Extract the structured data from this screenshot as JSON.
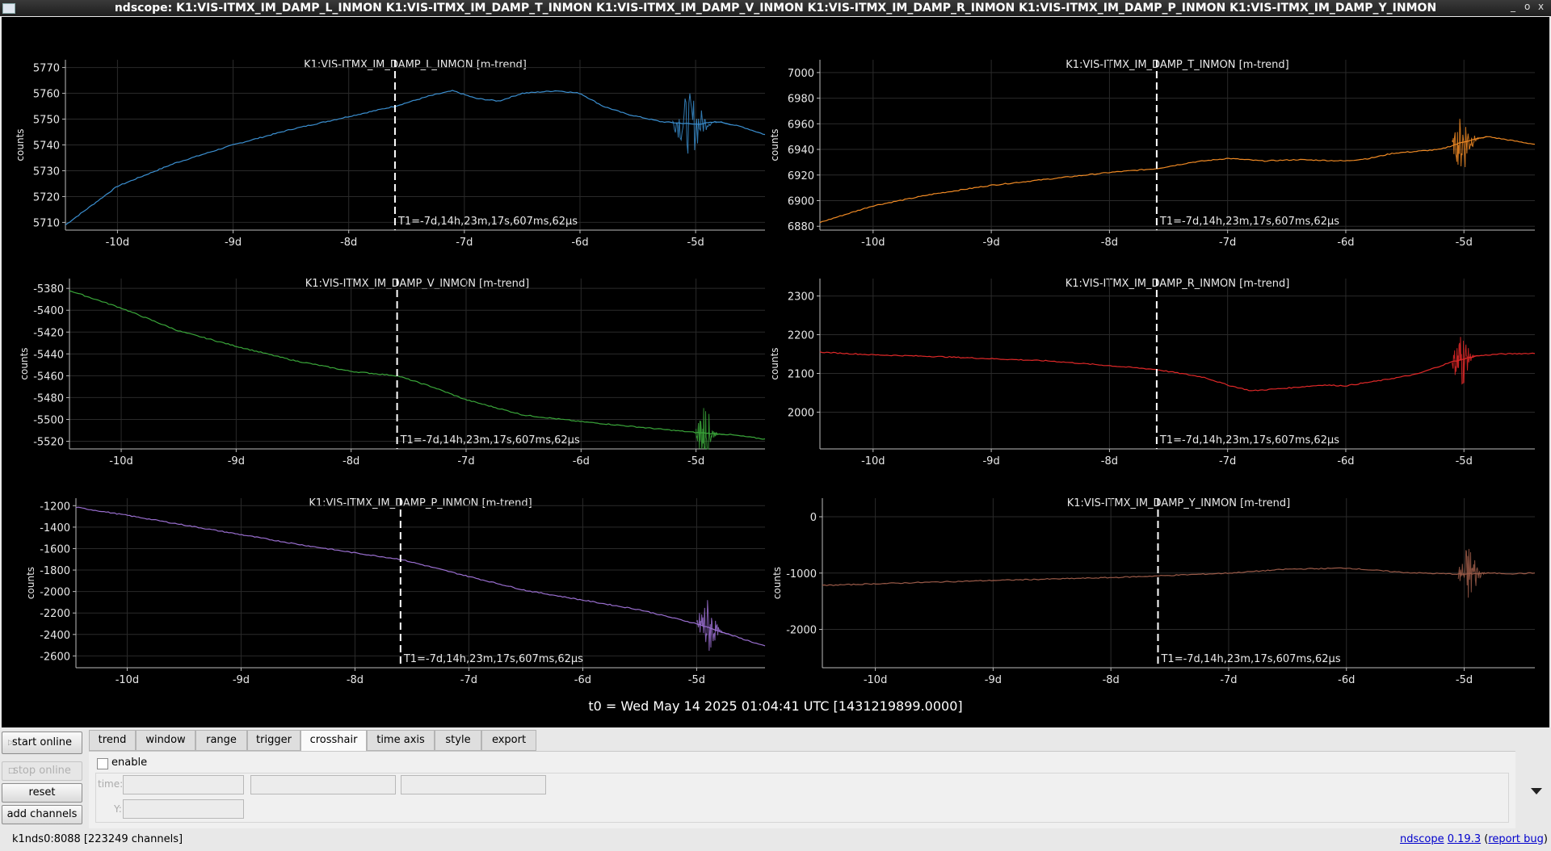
{
  "window": {
    "title": "ndscope: K1:VIS-ITMX_IM_DAMP_L_INMON K1:VIS-ITMX_IM_DAMP_T_INMON K1:VIS-ITMX_IM_DAMP_V_INMON K1:VIS-ITMX_IM_DAMP_R_INMON K1:VIS-ITMX_IM_DAMP_P_INMON K1:VIS-ITMX_IM_DAMP_Y_INMON",
    "controls": [
      "_",
      "o",
      "x"
    ]
  },
  "plots": [
    {
      "title": "K1:VIS-ITMX_IM_DAMP_L_INMON [m-trend]",
      "ylabel": "counts",
      "color": "#3b8fd0",
      "yticks": [
        "5770",
        "5760",
        "5750",
        "5740",
        "5730",
        "5720",
        "5710"
      ],
      "xticks": [
        "-10d",
        "-9d",
        "-8d",
        "-7d",
        "-6d",
        "-5d"
      ],
      "cursor_label": "T1=-7d,14h,23m,17s,607ms,62µs"
    },
    {
      "title": "K1:VIS-ITMX_IM_DAMP_T_INMON [m-trend]",
      "ylabel": "counts",
      "color": "#f08a24",
      "yticks": [
        "7000",
        "6980",
        "6960",
        "6940",
        "6920",
        "6900",
        "6880"
      ],
      "xticks": [
        "-10d",
        "-9d",
        "-8d",
        "-7d",
        "-6d",
        "-5d"
      ],
      "cursor_label": "T1=-7d,14h,23m,17s,607ms,62µs"
    },
    {
      "title": "K1:VIS-ITMX_IM_DAMP_V_INMON [m-trend]",
      "ylabel": "counts",
      "color": "#3aa63a",
      "yticks": [
        "-5380",
        "-5400",
        "-5420",
        "-5440",
        "-5460",
        "-5480",
        "-5500",
        "-5520"
      ],
      "xticks": [
        "-10d",
        "-9d",
        "-8d",
        "-7d",
        "-6d",
        "-5d"
      ],
      "cursor_label": "T1=-7d,14h,23m,17s,607ms,62µs"
    },
    {
      "title": "K1:VIS-ITMX_IM_DAMP_R_INMON [m-trend]",
      "ylabel": "counts",
      "color": "#e02828",
      "yticks": [
        "2300",
        "2200",
        "2100",
        "2000"
      ],
      "xticks": [
        "-10d",
        "-9d",
        "-8d",
        "-7d",
        "-6d",
        "-5d"
      ],
      "cursor_label": "T1=-7d,14h,23m,17s,607ms,62µs"
    },
    {
      "title": "K1:VIS-ITMX_IM_DAMP_P_INMON [m-trend]",
      "ylabel": "counts",
      "color": "#9a6fd0",
      "yticks": [
        "-1200",
        "-1400",
        "-1600",
        "-1800",
        "-2000",
        "-2200",
        "-2400",
        "-2600"
      ],
      "xticks": [
        "-10d",
        "-9d",
        "-8d",
        "-7d",
        "-6d",
        "-5d"
      ],
      "cursor_label": "T1=-7d,14h,23m,17s,607ms,62µs"
    },
    {
      "title": "K1:VIS-ITMX_IM_DAMP_Y_INMON [m-trend]",
      "ylabel": "counts",
      "color": "#9a5a48",
      "yticks": [
        "0",
        "-1000",
        "-2000"
      ],
      "xticks": [
        "-10d",
        "-9d",
        "-8d",
        "-7d",
        "-6d",
        "-5d"
      ],
      "cursor_label": "T1=-7d,14h,23m,17s,607ms,62µs"
    }
  ],
  "t0_label": "t0 = Wed May 14 2025 01:04:41 UTC [1431219899.0000]",
  "side_buttons": {
    "start_online": "start online",
    "stop_online": "stop online",
    "reset": "reset",
    "add_channels": "add channels"
  },
  "tabs": [
    "trend",
    "window",
    "range",
    "trigger",
    "crosshair",
    "time axis",
    "style",
    "export"
  ],
  "active_tab": "crosshair",
  "crosshair": {
    "enable_label": "enable",
    "enabled": false,
    "time_label": "time:",
    "y_label": "Y:",
    "time_value": "",
    "y_value": ""
  },
  "status": {
    "server": "k1nds0:8088  [223249 channels]",
    "app_link": "ndscope",
    "version_link": "0.19.3",
    "report_prefix": "(",
    "report_link": "report bug",
    "report_suffix": ")"
  },
  "chart_data": [
    {
      "type": "line",
      "title": "K1:VIS-ITMX_IM_DAMP_L_INMON [m-trend]",
      "ylabel": "counts",
      "xlim": [
        -10.45,
        -4.4
      ],
      "ylim": [
        5707,
        5773
      ],
      "cursor_x": -7.6,
      "x": [
        -10.45,
        -10.0,
        -9.5,
        -9.0,
        -8.5,
        -8.0,
        -7.6,
        -7.3,
        -7.1,
        -6.9,
        -6.7,
        -6.5,
        -6.2,
        -6.0,
        -5.8,
        -5.6,
        -5.3,
        -5.0,
        -4.8,
        -4.6,
        -4.4
      ],
      "y": [
        5709,
        5724,
        5733,
        5740,
        5746,
        5751,
        5755,
        5759,
        5761,
        5758,
        5757,
        5760,
        5761,
        5760,
        5755,
        5752,
        5749,
        5748,
        5749,
        5747,
        5744
      ],
      "noise_region": [
        -5.2,
        -4.7
      ]
    },
    {
      "type": "line",
      "title": "K1:VIS-ITMX_IM_DAMP_T_INMON [m-trend]",
      "ylabel": "counts",
      "xlim": [
        -10.45,
        -4.4
      ],
      "ylim": [
        6877,
        7010
      ],
      "cursor_x": -7.6,
      "x": [
        -10.45,
        -10.0,
        -9.5,
        -9.0,
        -8.5,
        -8.0,
        -7.6,
        -7.3,
        -7.0,
        -6.7,
        -6.4,
        -6.0,
        -5.8,
        -5.6,
        -5.2,
        -5.0,
        -4.8,
        -4.6,
        -4.4
      ],
      "y": [
        6883,
        6896,
        6905,
        6912,
        6917,
        6922,
        6925,
        6930,
        6933,
        6931,
        6932,
        6931,
        6933,
        6937,
        6940,
        6946,
        6950,
        6947,
        6944
      ],
      "noise_region": [
        -5.1,
        -4.8
      ]
    },
    {
      "type": "line",
      "title": "K1:VIS-ITMX_IM_DAMP_V_INMON [m-trend]",
      "ylabel": "counts",
      "xlim": [
        -10.45,
        -4.4
      ],
      "ylim": [
        -5527,
        -5371
      ],
      "cursor_x": -7.6,
      "x": [
        -10.45,
        -10.0,
        -9.5,
        -9.0,
        -8.5,
        -8.0,
        -7.6,
        -7.3,
        -7.0,
        -6.5,
        -6.0,
        -5.5,
        -5.0,
        -4.7,
        -4.4
      ],
      "y": [
        -5382,
        -5398,
        -5419,
        -5433,
        -5446,
        -5456,
        -5460,
        -5470,
        -5482,
        -5496,
        -5502,
        -5507,
        -5512,
        -5514,
        -5518
      ],
      "noise_region": [
        -5.0,
        -4.75
      ]
    },
    {
      "type": "line",
      "title": "K1:VIS-ITMX_IM_DAMP_R_INMON [m-trend]",
      "ylabel": "counts",
      "xlim": [
        -10.45,
        -4.4
      ],
      "ylim": [
        1905,
        2345
      ],
      "cursor_x": -7.6,
      "x": [
        -10.45,
        -10.0,
        -9.5,
        -9.0,
        -8.5,
        -8.0,
        -7.6,
        -7.2,
        -7.0,
        -6.8,
        -6.5,
        -6.2,
        -6.0,
        -5.7,
        -5.4,
        -5.1,
        -4.9,
        -4.7,
        -4.4
      ],
      "y": [
        2155,
        2148,
        2144,
        2138,
        2132,
        2120,
        2110,
        2090,
        2070,
        2055,
        2062,
        2070,
        2068,
        2082,
        2098,
        2130,
        2145,
        2150,
        2152
      ],
      "noise_region": [
        -5.1,
        -4.85
      ]
    },
    {
      "type": "line",
      "title": "K1:VIS-ITMX_IM_DAMP_P_INMON [m-trend]",
      "ylabel": "counts",
      "xlim": [
        -10.45,
        -4.4
      ],
      "ylim": [
        -2710,
        -1130
      ],
      "cursor_x": -7.6,
      "x": [
        -10.45,
        -10.0,
        -9.5,
        -9.0,
        -8.5,
        -8.0,
        -7.6,
        -7.0,
        -6.5,
        -6.0,
        -5.5,
        -5.0,
        -4.8,
        -4.6,
        -4.4
      ],
      "y": [
        -1215,
        -1290,
        -1380,
        -1470,
        -1560,
        -1640,
        -1700,
        -1860,
        -1990,
        -2080,
        -2170,
        -2300,
        -2370,
        -2440,
        -2510
      ],
      "noise_region": [
        -5.0,
        -4.7
      ]
    },
    {
      "type": "line",
      "title": "K1:VIS-ITMX_IM_DAMP_Y_INMON [m-trend]",
      "ylabel": "counts",
      "xlim": [
        -10.45,
        -4.4
      ],
      "ylim": [
        -2680,
        330
      ],
      "cursor_x": -7.6,
      "x": [
        -10.45,
        -10.0,
        -9.0,
        -8.0,
        -7.6,
        -7.0,
        -6.5,
        -6.2,
        -6.0,
        -5.7,
        -5.5,
        -5.2,
        -5.0,
        -4.8,
        -4.6,
        -4.4
      ],
      "y": [
        -1220,
        -1190,
        -1130,
        -1080,
        -1050,
        -1000,
        -930,
        -920,
        -910,
        -960,
        -990,
        -1010,
        -1020,
        -1000,
        -1010,
        -1000
      ],
      "noise_region": [
        -5.05,
        -4.75
      ]
    }
  ]
}
